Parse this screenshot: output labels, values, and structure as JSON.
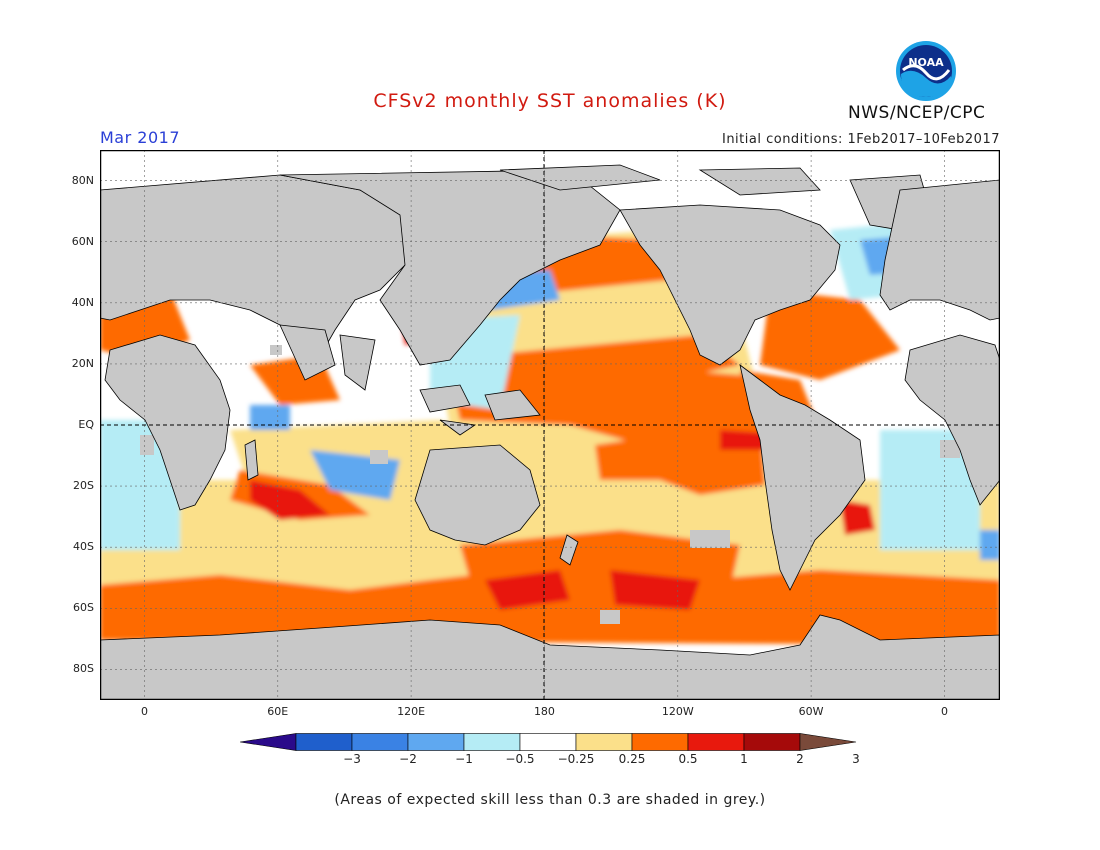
{
  "header": {
    "title": "CFSv2 monthly SST anomalies (K)",
    "month": "Mar 2017",
    "initial_conditions": "Initial conditions: 1Feb2017–10Feb2017",
    "agency": "NWS/NCEP/CPC",
    "logo_text": "NOAA"
  },
  "map": {
    "lat_labels": [
      "80N",
      "60N",
      "40N",
      "20N",
      "EQ",
      "20S",
      "40S",
      "60S",
      "80S"
    ],
    "lon_labels": [
      "0",
      "60E",
      "120E",
      "180",
      "120W",
      "60W",
      "0"
    ],
    "lat_values": [
      80,
      60,
      40,
      20,
      0,
      -20,
      -40,
      -60,
      -80
    ],
    "lon_values": [
      0,
      60,
      120,
      180,
      240,
      300,
      360
    ],
    "lon_range": [
      -20,
      385
    ],
    "lat_range": [
      -90,
      90
    ]
  },
  "colorbar": {
    "labels": [
      "−3",
      "−2",
      "−1",
      "−0.5",
      "−0.25",
      "0.25",
      "0.5",
      "1",
      "2",
      "3"
    ],
    "colors": [
      "#2a0a8a",
      "#1f5fcc",
      "#3a82e4",
      "#5fa8f0",
      "#b5ecf5",
      "#ffffff",
      "#fbe08a",
      "#fe6a00",
      "#e8190d",
      "#a50a0a",
      "#7a4a3a"
    ]
  },
  "footnote": "(Areas of expected skill less than 0.3 are shaded in grey.)",
  "colors": {
    "land": "#c8c8c8",
    "grey_skill": "#c8c8c8",
    "title": "#d11a10",
    "month": "#2a3fd6"
  }
}
